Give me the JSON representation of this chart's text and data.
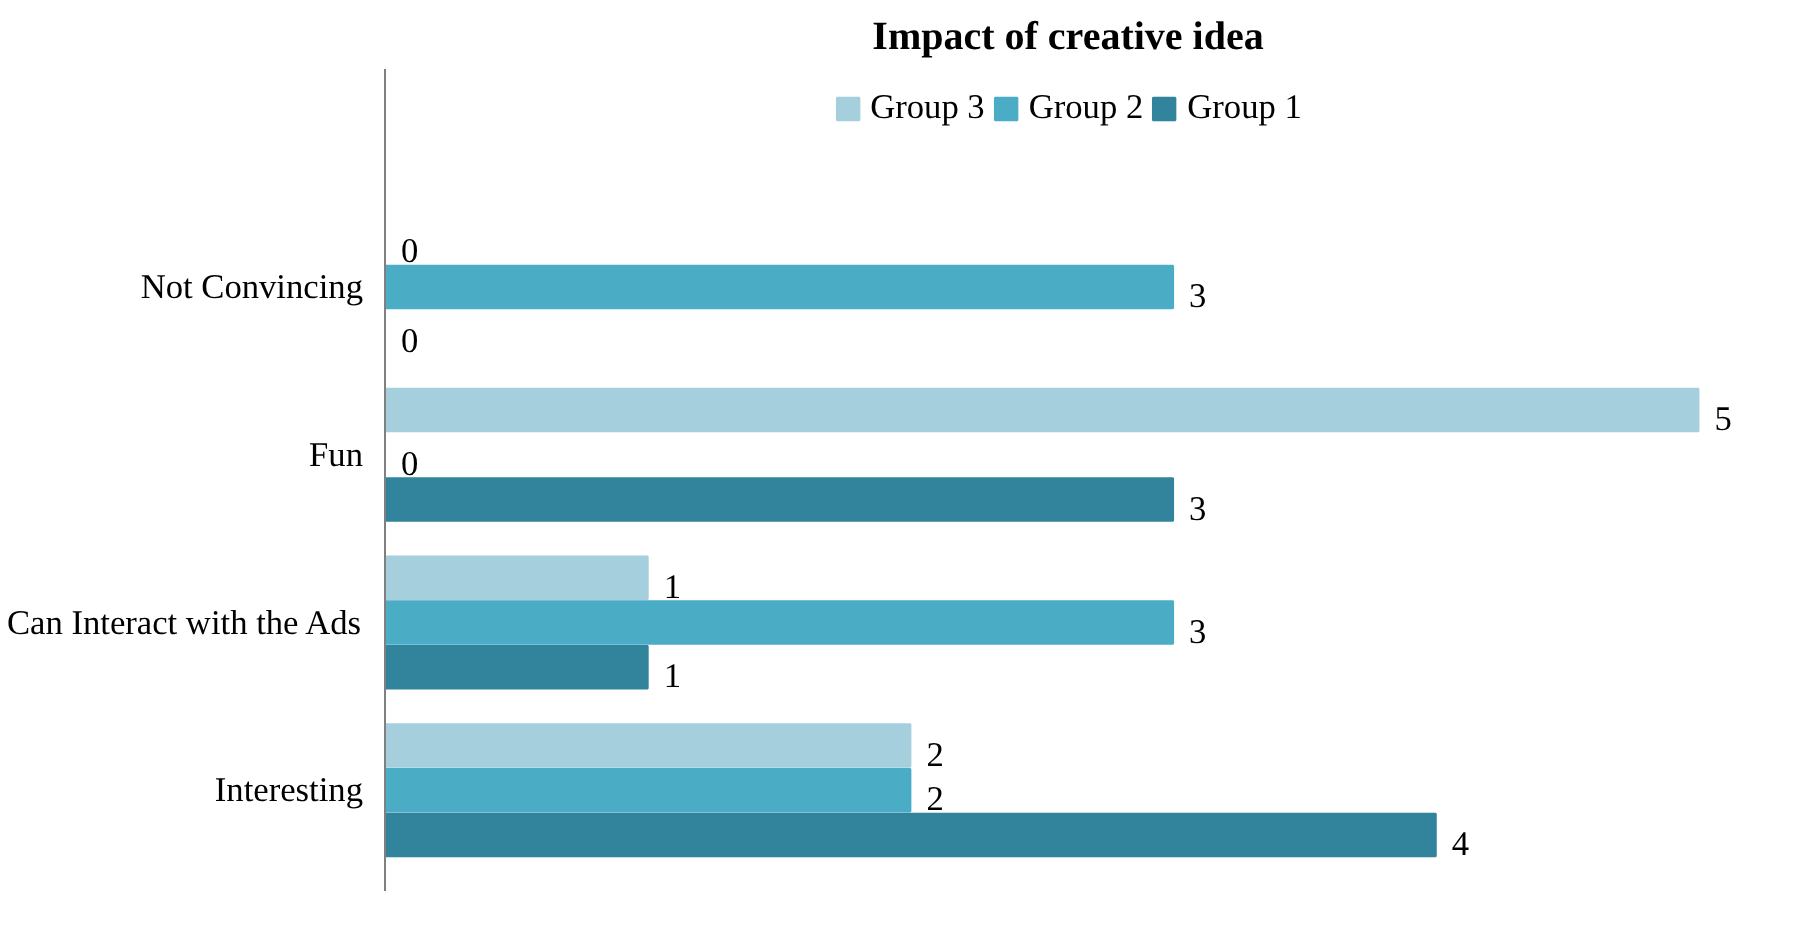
{
  "chart_data": {
    "type": "bar",
    "orientation": "horizontal",
    "title": "Impact of creative idea",
    "categories": [
      "Not Convincing",
      "Fun",
      "Can Interact with the Ads",
      "Interesting"
    ],
    "series": [
      {
        "name": "Group 3",
        "color": "#a5cfdc",
        "values": [
          0,
          5,
          1,
          2
        ]
      },
      {
        "name": "Group 2",
        "color": "#4bacc6",
        "values": [
          3,
          0,
          3,
          2
        ]
      },
      {
        "name": "Group 1",
        "color": "#31849b",
        "values": [
          0,
          3,
          1,
          4
        ]
      }
    ],
    "data_labels": true,
    "legend": "top",
    "grid": false,
    "tick_labels": "y"
  }
}
